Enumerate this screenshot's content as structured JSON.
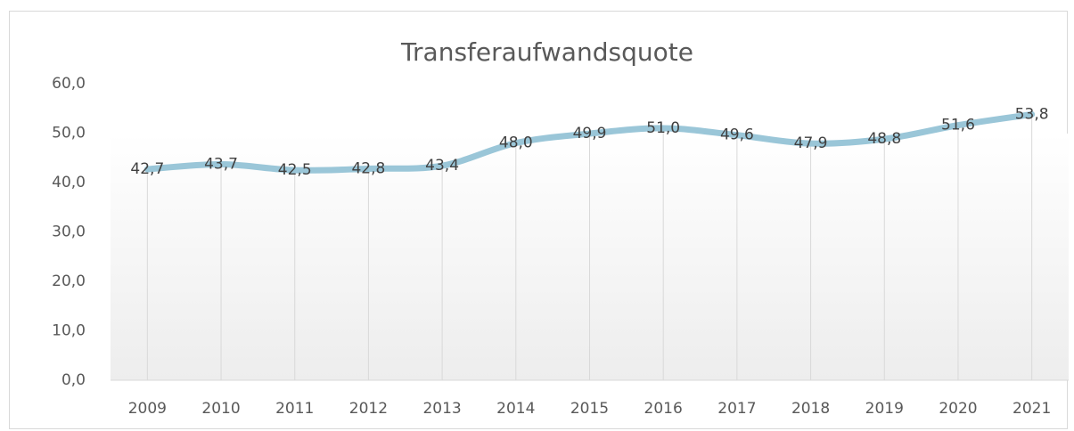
{
  "chart_data": {
    "type": "line",
    "title": "Transferaufwandsquote",
    "categories": [
      "2009",
      "2010",
      "2011",
      "2012",
      "2013",
      "2014",
      "2015",
      "2016",
      "2017",
      "2018",
      "2019",
      "2020",
      "2021"
    ],
    "series": [
      {
        "name": "Transferaufwandsquote",
        "color": "#9ac6d8",
        "values": [
          42.7,
          43.7,
          42.5,
          42.8,
          43.4,
          48.0,
          49.9,
          51.0,
          49.6,
          47.9,
          48.8,
          51.6,
          53.8
        ],
        "value_labels": [
          "42,7",
          "43,7",
          "42,5",
          "42,8",
          "43,4",
          "48,0",
          "49,9",
          "51,0",
          "49,6",
          "47,9",
          "48,8",
          "51,6",
          "53,8"
        ]
      }
    ],
    "ylim": [
      0,
      60
    ],
    "yticks": [
      {
        "value": 0,
        "label": "0,0"
      },
      {
        "value": 10,
        "label": "10,0"
      },
      {
        "value": 20,
        "label": "20,0"
      },
      {
        "value": 30,
        "label": "30,0"
      },
      {
        "value": 40,
        "label": "40,0"
      },
      {
        "value": 50,
        "label": "50,0"
      },
      {
        "value": 60,
        "label": "60,0"
      }
    ],
    "drop_lines": true
  }
}
